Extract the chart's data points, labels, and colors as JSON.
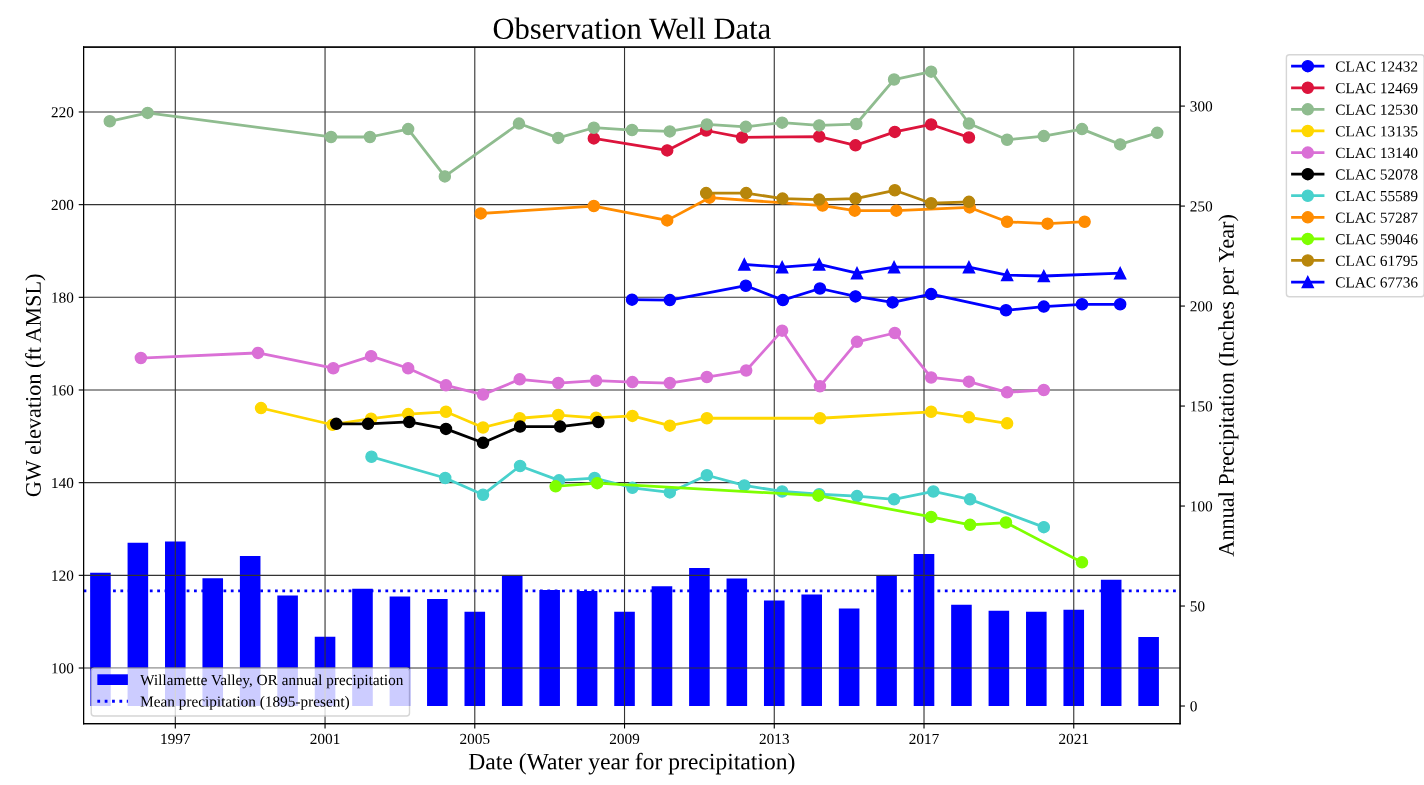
{
  "chart_data": {
    "type": "line",
    "title": "Observation Well Data",
    "xlabel": "Date (Water year for precipitation)",
    "ylabel": "GW elevation (ft AMSL)",
    "y2label": "Annual Precipitation (Inches per Year)",
    "xlim": [
      1994.55,
      2023.84
    ],
    "xticks": [
      1997,
      2001,
      2005,
      2009,
      2013,
      2017,
      2021
    ],
    "ylim": [
      88,
      234
    ],
    "yticks": [
      100,
      120,
      140,
      160,
      180,
      200,
      220
    ],
    "y2lim": [
      -8.8,
      329.5
    ],
    "y2ticks": [
      0,
      50,
      100,
      150,
      200,
      250,
      300
    ],
    "grid": true,
    "legend": "top right",
    "marker": "circle",
    "line_style": "solid",
    "series": [
      {
        "name": "Willamette Valley, OR annual precipitation",
        "type": "bar",
        "axis": "y2",
        "color": "#0000ff",
        "x": [
          1995,
          1996,
          1997,
          1998,
          1999,
          2000,
          2001,
          2002,
          2003,
          2004,
          2005,
          2006,
          2007,
          2008,
          2009,
          2010,
          2011,
          2012,
          2013,
          2014,
          2015,
          2016,
          2017,
          2018,
          2019,
          2020,
          2021,
          2022,
          2023
        ],
        "values": [
          66.7,
          81.7,
          82.3,
          63.9,
          75.0,
          55.3,
          34.6,
          58.7,
          54.8,
          53.5,
          47.1,
          65.0,
          58.0,
          57.5,
          47.1,
          59.9,
          69.0,
          63.8,
          52.8,
          55.8,
          48.8,
          65.0,
          76.0,
          50.6,
          47.7,
          47.1,
          48.2,
          63.2,
          34.5
        ]
      },
      {
        "name": "CLAC 12432",
        "color": "#0000ff",
        "x": [
          2009.2,
          2010.21,
          2012.24,
          2013.23,
          2014.22,
          2015.17,
          2016.16,
          2017.19,
          2019.19,
          2020.2,
          2021.22,
          2022.24
        ],
        "values": [
          179.5,
          179.4,
          182.5,
          179.4,
          181.9,
          180.2,
          178.9,
          180.7,
          177.2,
          178.0,
          178.5,
          178.5
        ]
      },
      {
        "name": "CLAC 12469",
        "color": "#dc143c",
        "x": [
          2008.18,
          2010.14,
          2011.18,
          2012.14,
          2014.2,
          2015.17,
          2016.22,
          2017.19,
          2018.2
        ],
        "values": [
          214.3,
          211.7,
          216.0,
          214.5,
          214.7,
          212.8,
          215.7,
          217.3,
          214.5
        ]
      },
      {
        "name": "CLAC 12530",
        "color": "#8fbc8f",
        "x": [
          1995.25,
          1996.26,
          2001.16,
          2002.2,
          2003.22,
          2004.2,
          2006.18,
          2007.23,
          2008.18,
          2009.2,
          2010.21,
          2011.2,
          2012.24,
          2013.21,
          2014.2,
          2015.19,
          2016.2,
          2017.19,
          2018.2,
          2019.22,
          2020.2,
          2021.22,
          2022.24,
          2023.23
        ],
        "values": [
          218.0,
          219.8,
          214.6,
          214.6,
          216.3,
          206.1,
          217.5,
          214.4,
          216.6,
          216.1,
          215.8,
          217.3,
          216.8,
          217.7,
          217.1,
          217.4,
          227.0,
          228.7,
          217.5,
          214.0,
          214.8,
          216.3,
          213.0,
          215.5
        ]
      },
      {
        "name": "CLAC 13135",
        "color": "#ffd700",
        "x": [
          1999.29,
          2001.2,
          2002.23,
          2003.22,
          2004.23,
          2005.22,
          2006.2,
          2007.23,
          2008.24,
          2009.21,
          2010.21,
          2011.2,
          2014.22,
          2017.19,
          2018.2,
          2019.22
        ],
        "values": [
          156.1,
          152.5,
          153.8,
          154.8,
          155.3,
          151.9,
          153.9,
          154.6,
          154.0,
          154.4,
          152.3,
          153.9,
          153.9,
          155.3,
          154.1,
          152.8
        ]
      },
      {
        "name": "CLAC 13140",
        "color": "#da70d6",
        "x": [
          1996.08,
          1999.21,
          2001.22,
          2002.23,
          2003.22,
          2004.23,
          2005.22,
          2006.2,
          2007.23,
          2008.24,
          2009.21,
          2010.21,
          2011.2,
          2012.25,
          2013.21,
          2014.22,
          2015.21,
          2016.22,
          2017.19,
          2018.2,
          2019.22,
          2020.2
        ],
        "values": [
          166.9,
          168.0,
          164.7,
          167.3,
          164.7,
          161.0,
          159.0,
          162.3,
          161.5,
          162.0,
          161.7,
          161.5,
          162.8,
          164.2,
          172.8,
          160.8,
          170.4,
          172.3,
          162.7,
          161.8,
          159.5,
          160.0
        ]
      },
      {
        "name": "CLAC 52078",
        "color": "#000000",
        "x": [
          2001.3,
          2002.15,
          2003.25,
          2004.23,
          2005.22,
          2006.21,
          2007.28,
          2008.3
        ],
        "values": [
          152.7,
          152.7,
          153.1,
          151.6,
          148.6,
          152.1,
          152.1,
          153.1
        ]
      },
      {
        "name": "CLAC 55589",
        "color": "#48d1cc",
        "x": [
          2002.24,
          2004.21,
          2005.22,
          2006.21,
          2007.25,
          2008.2,
          2009.21,
          2010.21,
          2011.2,
          2012.2,
          2013.21,
          2014.2,
          2015.21,
          2016.2,
          2017.25,
          2018.23,
          2020.2
        ],
        "values": [
          145.6,
          141.0,
          137.4,
          143.6,
          140.5,
          141.0,
          138.9,
          137.9,
          141.6,
          139.4,
          138.1,
          137.5,
          137.1,
          136.4,
          138.1,
          136.4,
          130.4
        ]
      },
      {
        "name": "CLAC 57287",
        "color": "#ff8c00",
        "x": [
          2005.16,
          2008.18,
          2010.14,
          2011.27,
          2014.29,
          2015.15,
          2016.26,
          2018.22,
          2019.22,
          2020.3,
          2021.29
        ],
        "values": [
          198.1,
          199.7,
          196.6,
          201.5,
          199.8,
          198.7,
          198.7,
          199.4,
          196.3,
          195.9,
          196.3
        ]
      },
      {
        "name": "CLAC 59046",
        "color": "#7fff00",
        "x": [
          2007.16,
          2008.27,
          2014.18,
          2017.19,
          2018.23,
          2019.19,
          2021.22
        ],
        "values": [
          139.2,
          139.9,
          137.2,
          132.6,
          130.9,
          131.4,
          122.8
        ]
      },
      {
        "name": "CLAC 61795",
        "color": "#b8860b",
        "x": [
          2011.18,
          2012.25,
          2013.22,
          2014.2,
          2015.17,
          2016.22,
          2017.19,
          2018.2
        ],
        "values": [
          202.5,
          202.5,
          201.3,
          201.1,
          201.3,
          203.1,
          200.3,
          200.6
        ]
      },
      {
        "name": "CLAC 67736",
        "color": "#0000ff",
        "marker": "triangle",
        "x": [
          2012.2,
          2013.21,
          2014.2,
          2015.21,
          2016.2,
          2018.2,
          2019.22,
          2020.2,
          2022.24
        ],
        "values": [
          187.1,
          186.5,
          187.1,
          185.2,
          186.5,
          186.5,
          184.8,
          184.6,
          185.2
        ]
      }
    ],
    "ref_lines": [
      {
        "axis": "y2",
        "value": 57.6,
        "label": "Mean precipitation (1895-present)",
        "color": "#0000ff",
        "line_style": "dotted"
      }
    ]
  }
}
